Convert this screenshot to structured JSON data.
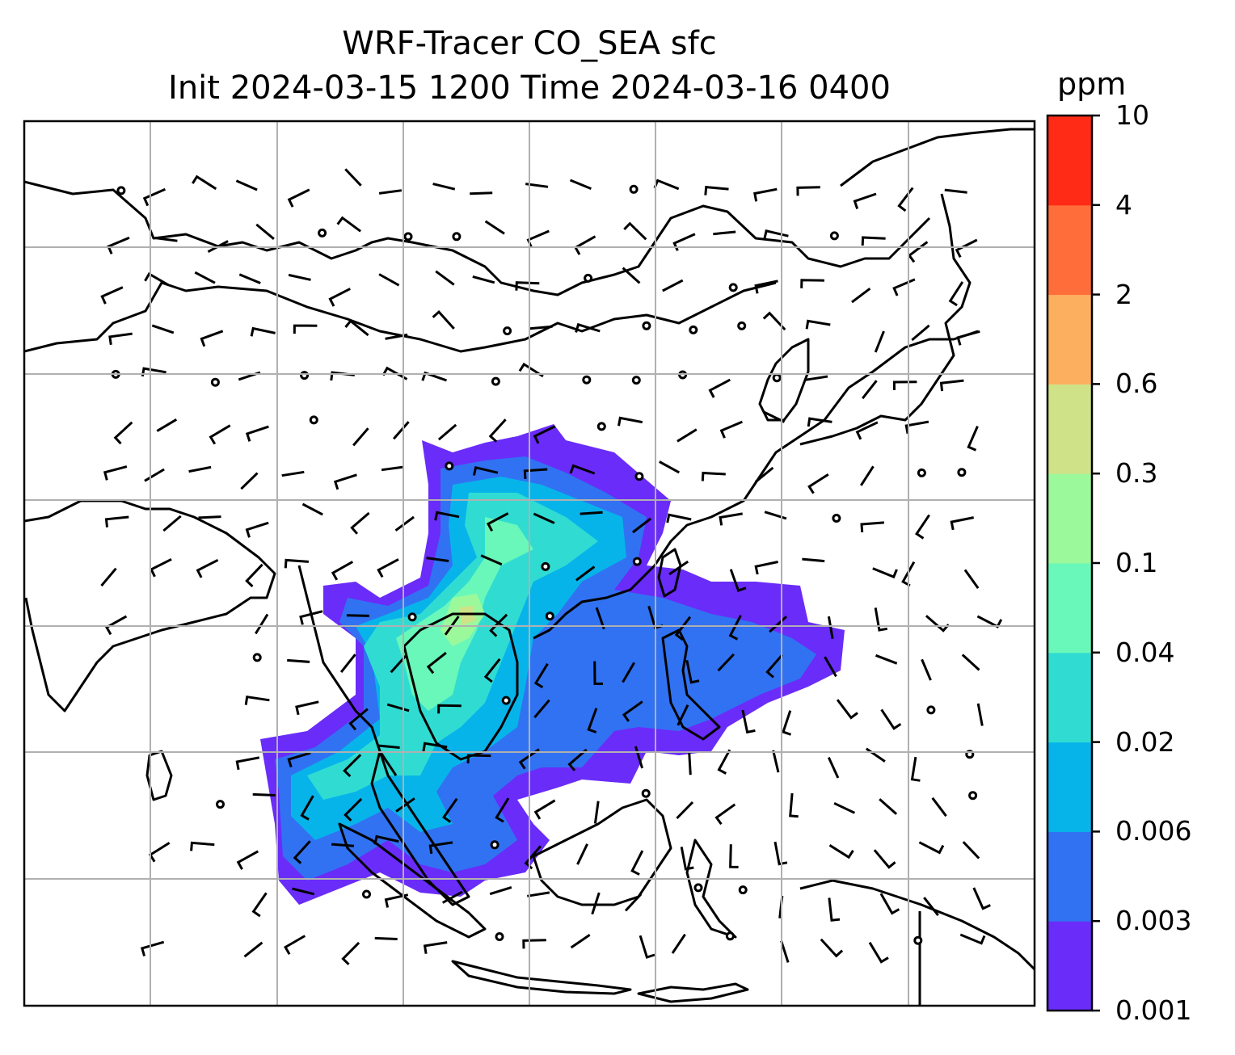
{
  "title": {
    "line1": "WRF-Tracer CO_SEA sfc",
    "line2": "Init 2024-03-15 1200 Time 2024-03-16 0400"
  },
  "colorbar": {
    "unit": "ppm",
    "levels": [
      "0.001",
      "0.003",
      "0.006",
      "0.02",
      "0.04",
      "0.1",
      "0.3",
      "0.6",
      "2",
      "4",
      "10"
    ],
    "colors": [
      "#6a2cf9",
      "#3172f2",
      "#07b4ea",
      "#30dcd2",
      "#69f8b9",
      "#9cf99b",
      "#cfe287",
      "#fcb05f",
      "#ff6d3a",
      "#ff2b16"
    ]
  },
  "map": {
    "gridline_color": "#b0b0b0",
    "coastline_color": "#000000",
    "wind_barbs": true,
    "gridlines": true
  }
}
